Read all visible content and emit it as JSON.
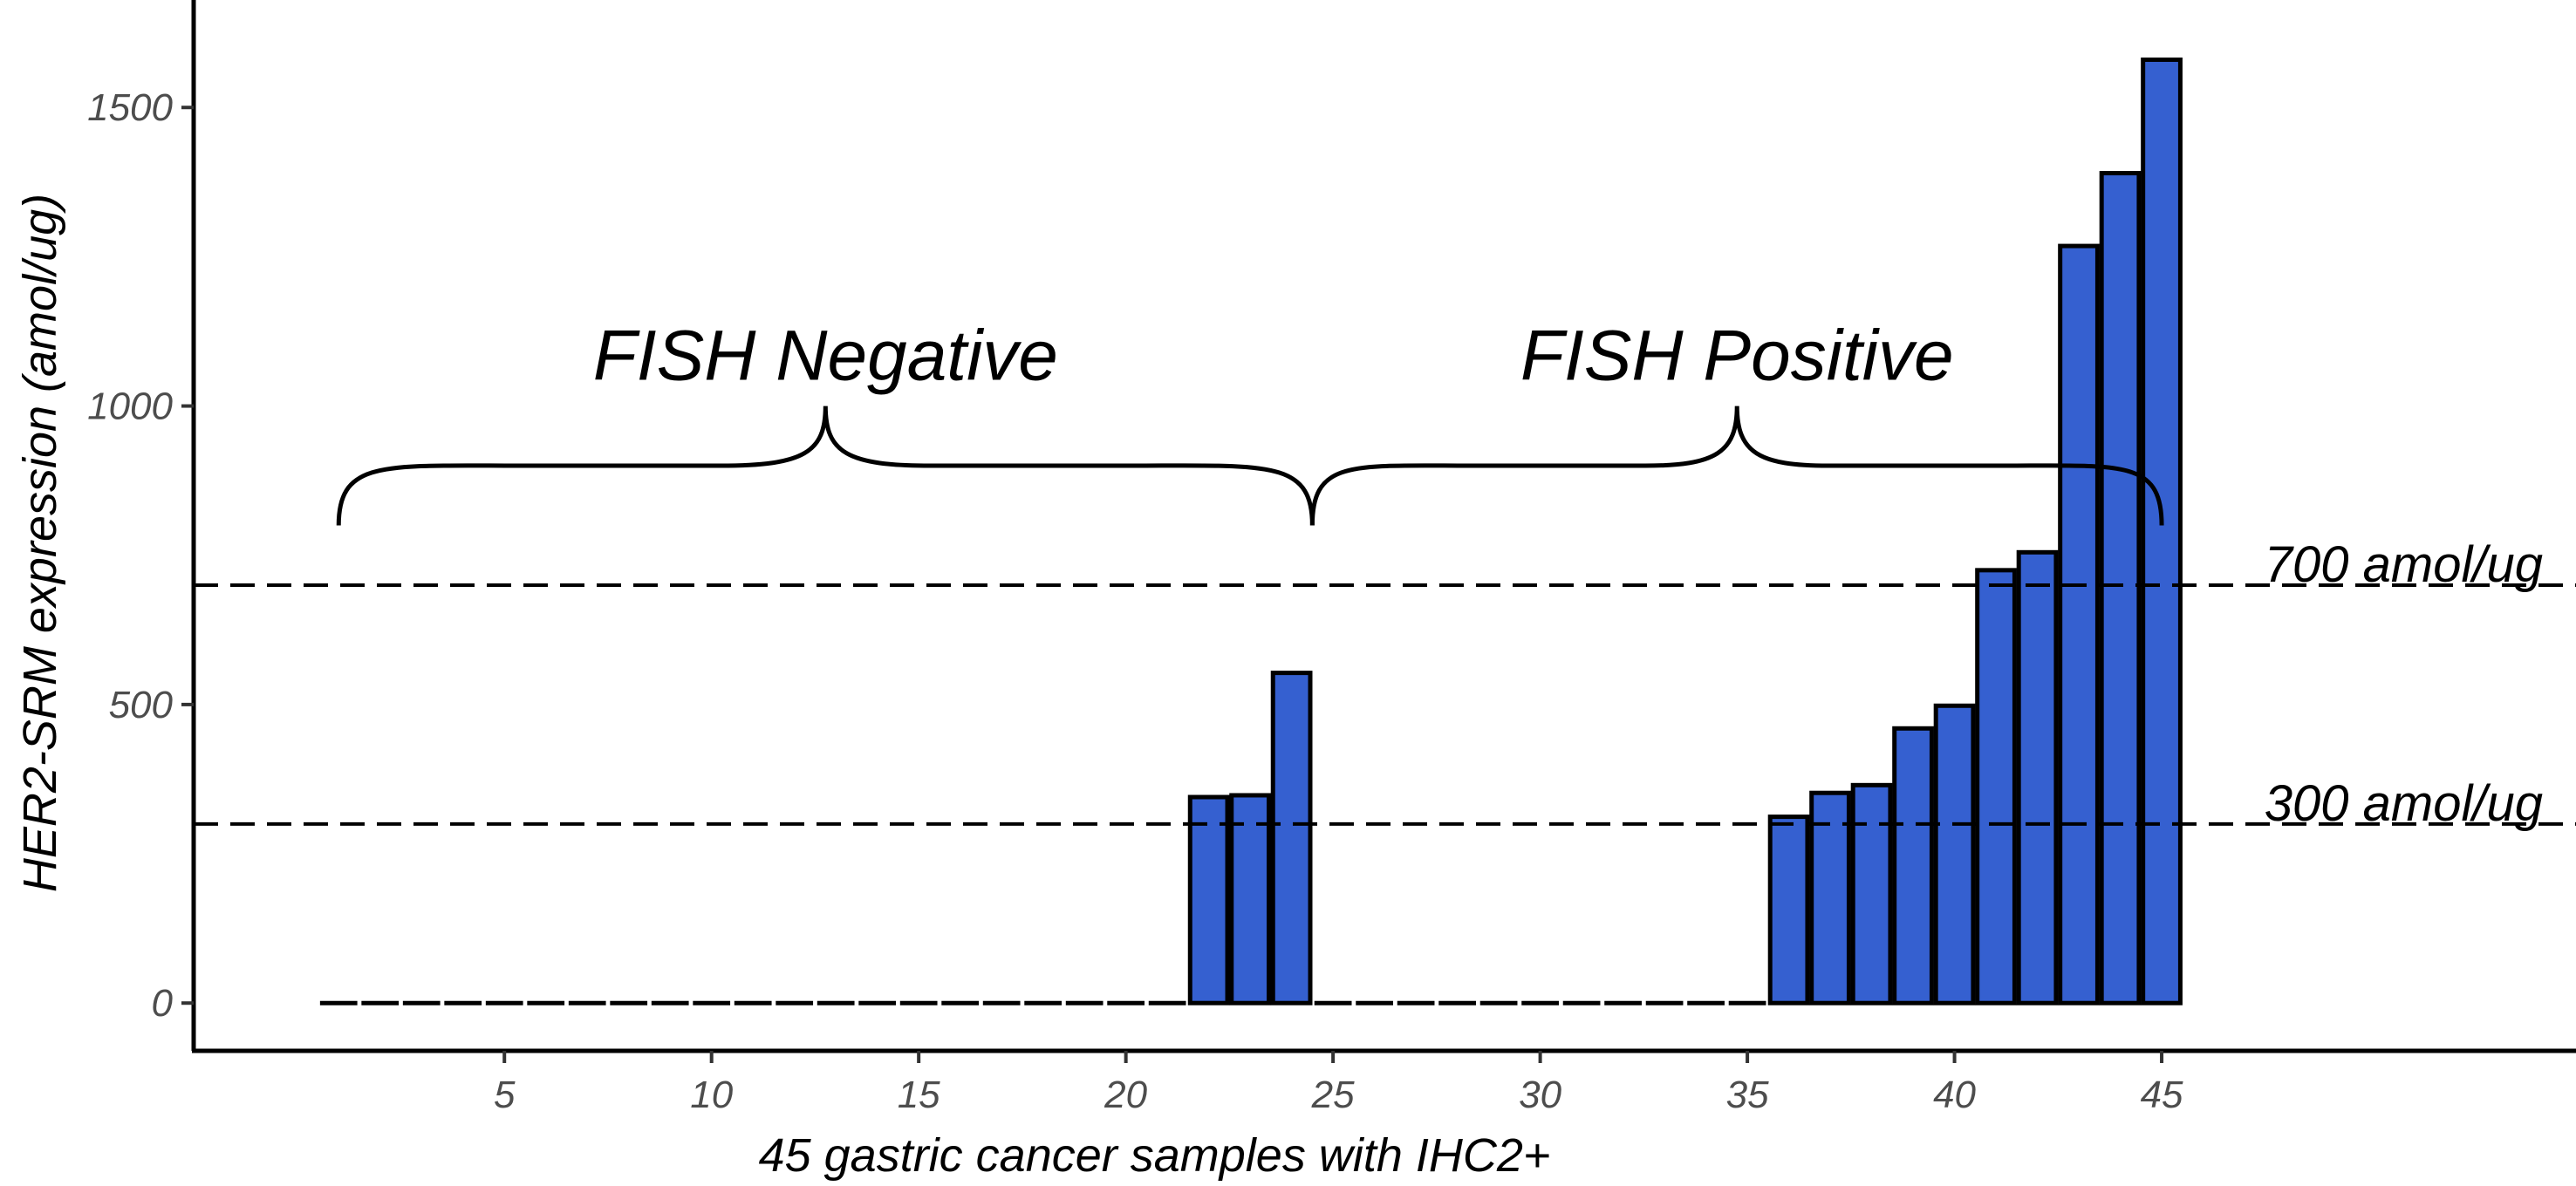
{
  "chart_data": {
    "type": "bar",
    "title": "",
    "xlabel": "45 gastric cancer samples with IHC2+",
    "ylabel": "HER2-SRM expression (amol/ug)",
    "xlim": [
      -2.5,
      55
    ],
    "ylim": [
      -80,
      1680
    ],
    "x_ticks": [
      5,
      10,
      15,
      20,
      25,
      30,
      35,
      40,
      45
    ],
    "y_ticks": [
      0,
      500,
      1000,
      1500
    ],
    "x_tick_labels": [
      "5",
      "10",
      "15",
      "20",
      "25",
      "30",
      "35",
      "40",
      "45"
    ],
    "y_tick_labels": [
      "0",
      "500",
      "1000",
      "1500"
    ],
    "bar_color": "#3560d0",
    "categories": [
      1,
      2,
      3,
      4,
      5,
      6,
      7,
      8,
      9,
      10,
      11,
      12,
      13,
      14,
      15,
      16,
      17,
      18,
      19,
      20,
      21,
      22,
      23,
      24,
      25,
      26,
      27,
      28,
      29,
      30,
      31,
      32,
      33,
      34,
      35,
      36,
      37,
      38,
      39,
      40,
      41,
      42,
      43,
      44,
      45
    ],
    "values": [
      0,
      0,
      0,
      0,
      0,
      0,
      0,
      0,
      0,
      0,
      0,
      0,
      0,
      0,
      0,
      0,
      0,
      0,
      0,
      0,
      0,
      345,
      348,
      553,
      0,
      0,
      0,
      0,
      0,
      0,
      0,
      0,
      0,
      0,
      0,
      312,
      352,
      365,
      460,
      498,
      725,
      755,
      1268,
      1390,
      1580
    ],
    "reference_lines": [
      {
        "y": 700,
        "label": "700 amol/ug"
      },
      {
        "y": 300,
        "label": "300 amol/ug"
      }
    ],
    "groups": [
      {
        "label": "FISH Negative",
        "from": 1,
        "to": 24.5
      },
      {
        "label": "FISH Positive",
        "from": 24.5,
        "to": 45
      }
    ]
  }
}
